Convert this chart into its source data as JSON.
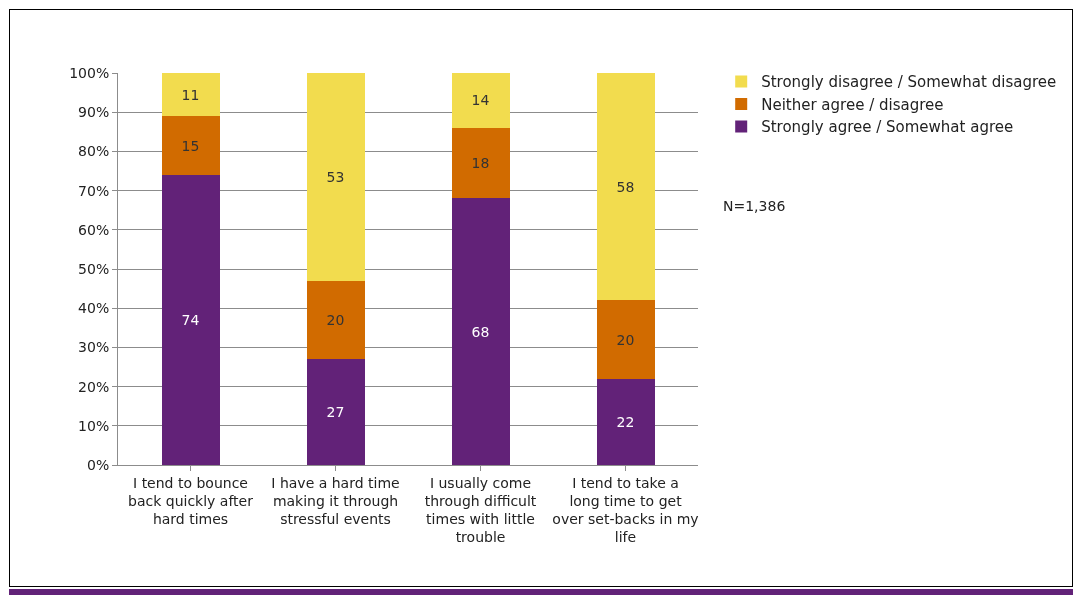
{
  "chart_data": {
    "type": "bar",
    "stacked": true,
    "categories": [
      "I tend to bounce back quickly after hard times",
      "I have a hard time making it through stressful events",
      "I usually come through difficult times with little trouble",
      "I tend to take a long time to get over set-backs in my life"
    ],
    "series": [
      {
        "name": "Strongly agree / Somewhat agree",
        "color": "#622278",
        "values": [
          74,
          27,
          68,
          22
        ]
      },
      {
        "name": "Neither agree / disagree",
        "color": "#d16b00",
        "values": [
          15,
          20,
          18,
          20
        ]
      },
      {
        "name": "Strongly disagree / Somewhat disagree",
        "color": "#f2dc4e",
        "values": [
          11,
          53,
          14,
          58
        ]
      }
    ],
    "ylim": [
      0,
      100
    ],
    "yticks": [
      {
        "value": 0,
        "label": "0%"
      },
      {
        "value": 10,
        "label": "10%"
      },
      {
        "value": 20,
        "label": "20%"
      },
      {
        "value": 30,
        "label": "30%"
      },
      {
        "value": 40,
        "label": "40%"
      },
      {
        "value": 50,
        "label": "50%"
      },
      {
        "value": 60,
        "label": "60%"
      },
      {
        "value": 70,
        "label": "70%"
      },
      {
        "value": 80,
        "label": "80%"
      },
      {
        "value": 90,
        "label": "90%"
      },
      {
        "value": 100,
        "label": "100%"
      }
    ],
    "grid": "y",
    "legend": "top right",
    "data_labels": true,
    "annotations": [
      "N=1,386"
    ]
  }
}
